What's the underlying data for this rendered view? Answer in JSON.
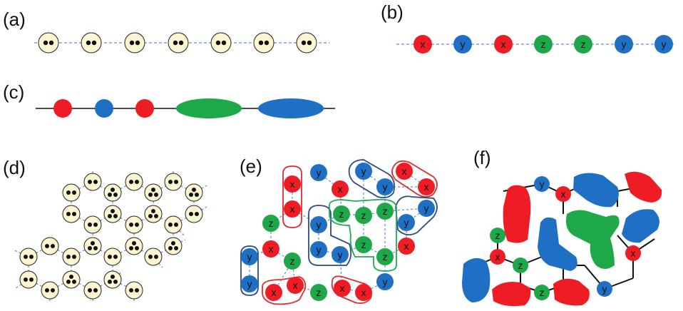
{
  "colors": {
    "x": "#ee1c25",
    "y": "#1f6fc5",
    "z": "#1ea84a",
    "spin": "#fbf5d2",
    "bond_dashed": "#5b8fd1",
    "bond_solid": "#111111",
    "outline_red": "#e32b2b",
    "outline_blue": "#2e4a8a",
    "outline_green": "#22aa55"
  },
  "panels": {
    "a": {
      "label": "(a)"
    },
    "b": {
      "label": "(b)",
      "sites": [
        "x",
        "y",
        "x",
        "z",
        "z",
        "y",
        "y"
      ]
    },
    "c": {
      "label": "(c)"
    },
    "d": {
      "label": "(d)"
    },
    "e": {
      "label": "(e)"
    },
    "f": {
      "label": "(f)"
    }
  },
  "node_letters": {
    "x": "x",
    "y": "y",
    "z": "z"
  }
}
